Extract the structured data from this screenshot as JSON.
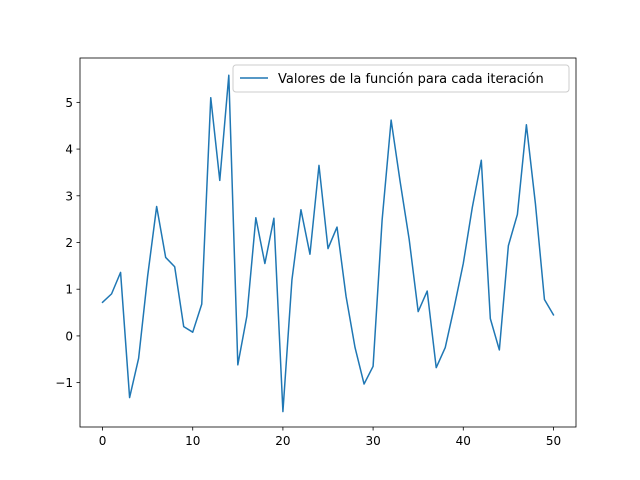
{
  "chart_data": {
    "type": "line",
    "title": "",
    "xlabel": "",
    "ylabel": "",
    "xlim": [
      -2.5,
      52.5
    ],
    "ylim": [
      -1.95,
      5.95
    ],
    "xticks": [
      0,
      10,
      20,
      30,
      40,
      50
    ],
    "xtick_labels": [
      "0",
      "10",
      "20",
      "30",
      "40",
      "50"
    ],
    "yticks": [
      -1,
      0,
      1,
      2,
      3,
      4,
      5
    ],
    "ytick_labels": [
      "−1",
      "0",
      "1",
      "2",
      "3",
      "4",
      "5"
    ],
    "grid": false,
    "legend_position": "top-right",
    "series": [
      {
        "name": "Valores de la función para cada iteración",
        "color": "#1f77b4",
        "x": [
          0,
          1,
          2,
          3,
          4,
          5,
          6,
          7,
          8,
          9,
          10,
          11,
          12,
          13,
          14,
          15,
          16,
          17,
          18,
          19,
          20,
          21,
          22,
          23,
          24,
          25,
          26,
          27,
          28,
          29,
          30,
          31,
          32,
          33,
          34,
          35,
          36,
          37,
          38,
          39,
          40,
          41,
          42,
          43,
          44,
          45,
          46,
          47,
          48,
          49,
          50
        ],
        "y": [
          0.72,
          0.9,
          1.36,
          -1.32,
          -0.48,
          1.28,
          2.77,
          1.68,
          1.48,
          0.2,
          0.08,
          0.68,
          5.1,
          3.33,
          5.58,
          -0.62,
          0.42,
          2.53,
          1.55,
          2.52,
          -1.62,
          1.2,
          2.7,
          1.75,
          3.65,
          1.87,
          2.33,
          0.85,
          -0.25,
          -1.03,
          -0.65,
          2.48,
          4.62,
          3.3,
          2.07,
          0.52,
          0.96,
          -0.68,
          -0.25,
          0.62,
          1.55,
          2.75,
          3.76,
          0.37,
          -0.3,
          1.93,
          2.6,
          4.52,
          2.83,
          0.78,
          0.45
        ]
      }
    ]
  }
}
